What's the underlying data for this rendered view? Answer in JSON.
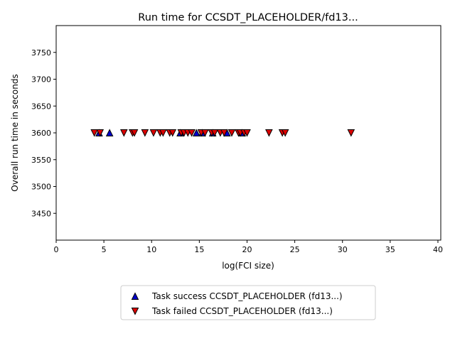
{
  "chart_data": {
    "type": "scatter",
    "title": "Run time for CCSDT_PLACEHOLDER/fd13...",
    "xlabel": "log(FCI size)",
    "ylabel": "Overall run time in seconds",
    "xlim": [
      0,
      40.3
    ],
    "ylim": [
      3400,
      3800
    ],
    "xticks": [
      0,
      5,
      10,
      15,
      20,
      25,
      30,
      35,
      40
    ],
    "yticks": [
      3450,
      3500,
      3550,
      3600,
      3650,
      3700,
      3750
    ],
    "grid": false,
    "legend_position": "below-center",
    "series": [
      {
        "name": "Task success CCSDT_PLACEHOLDER (fd13...)",
        "marker": "triangle-up",
        "color": "#0000cc",
        "x": [
          4.5,
          5.6,
          13.0,
          14.7,
          15.3,
          16.4,
          17.9,
          19.5
        ],
        "y": [
          3600,
          3600,
          3600,
          3600,
          3600,
          3600,
          3600,
          3600
        ]
      },
      {
        "name": "Task failed CCSDT_PLACEHOLDER (fd13...)",
        "marker": "triangle-down",
        "color": "#dd0000",
        "x": [
          4.0,
          4.6,
          7.1,
          8.0,
          8.2,
          9.3,
          10.2,
          10.9,
          11.2,
          11.9,
          12.2,
          13.1,
          13.4,
          13.8,
          14.2,
          15.2,
          15.6,
          16.3,
          16.6,
          17.2,
          17.6,
          18.4,
          19.1,
          19.3,
          19.7,
          20.0,
          22.3,
          23.7,
          24.0,
          30.9
        ],
        "y": [
          3600,
          3600,
          3600,
          3600,
          3600,
          3600,
          3600,
          3600,
          3600,
          3600,
          3600,
          3600,
          3600,
          3600,
          3600,
          3600,
          3600,
          3600,
          3600,
          3600,
          3600,
          3600,
          3600,
          3600,
          3600,
          3600,
          3600,
          3600,
          3600,
          3600
        ]
      }
    ]
  }
}
